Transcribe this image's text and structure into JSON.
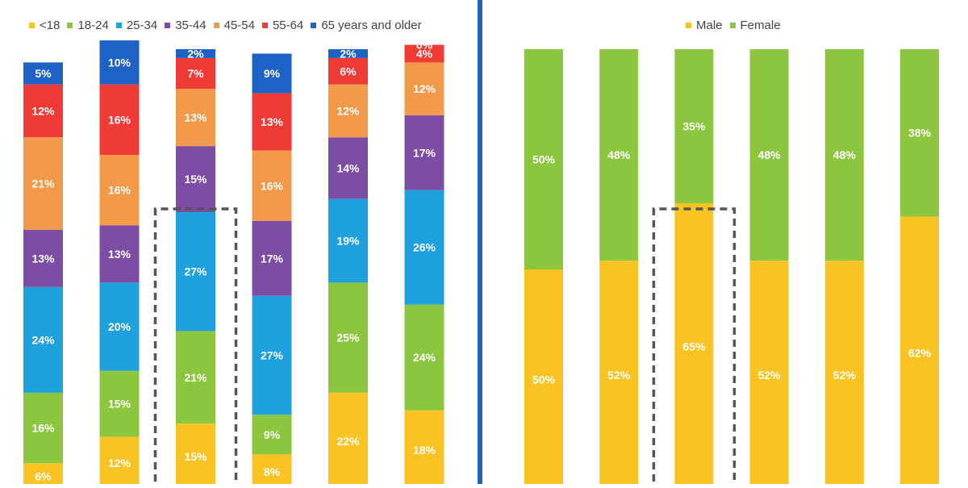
{
  "chart_data": [
    {
      "type": "bar",
      "stacked": true,
      "title": "",
      "grid": false,
      "legend": "top",
      "ylim": [
        0,
        100
      ],
      "value_format": "percent",
      "categories": [
        "",
        "",
        "",
        "",
        "",
        ""
      ],
      "highlighted_column": 2,
      "series": [
        {
          "name": "<18",
          "color": "#f9c423",
          "values": [
            6,
            12,
            15,
            8,
            22,
            18
          ]
        },
        {
          "name": "18-24",
          "color": "#8cc63f",
          "values": [
            16,
            15,
            21,
            9,
            25,
            24
          ]
        },
        {
          "name": "25-34",
          "color": "#1ea1dd",
          "values": [
            24,
            20,
            27,
            27,
            19,
            26
          ]
        },
        {
          "name": "35-44",
          "color": "#7b4ea3",
          "values": [
            13,
            13,
            15,
            17,
            14,
            17
          ]
        },
        {
          "name": "45-54",
          "color": "#f2994a",
          "values": [
            21,
            16,
            13,
            16,
            12,
            12
          ]
        },
        {
          "name": "55-64",
          "color": "#ef3a36",
          "values": [
            12,
            16,
            7,
            13,
            6,
            4
          ]
        },
        {
          "name": "65 years and older",
          "color": "#1d62c4",
          "values": [
            5,
            10,
            2,
            9,
            2,
            0
          ]
        }
      ]
    },
    {
      "type": "bar",
      "stacked": true,
      "title": "",
      "grid": false,
      "legend": "top",
      "ylim": [
        0,
        100
      ],
      "value_format": "percent",
      "categories": [
        "",
        "",
        "",
        "",
        "",
        ""
      ],
      "highlighted_column": 2,
      "series": [
        {
          "name": "Male",
          "color": "#f9c423",
          "values": [
            50,
            52,
            65,
            52,
            52,
            62
          ]
        },
        {
          "name": "Female",
          "color": "#8cc63f",
          "values": [
            50,
            48,
            35,
            48,
            48,
            38
          ]
        }
      ]
    }
  ]
}
